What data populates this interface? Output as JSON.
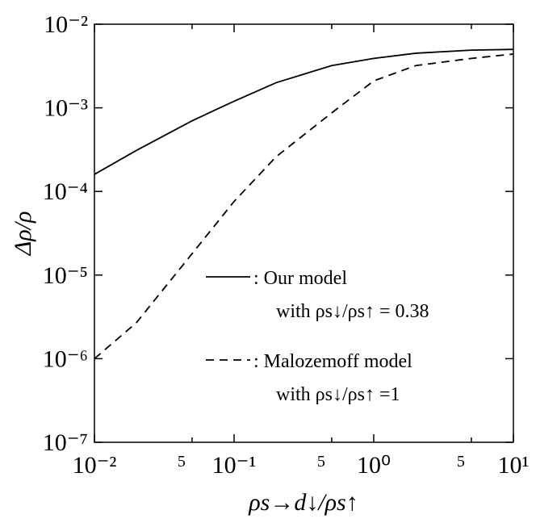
{
  "chart_data": {
    "type": "line",
    "x_label": "ρs→d↓/ρs↑",
    "y_label": "Δρ/ρ",
    "x": [
      0.01,
      0.02,
      0.05,
      0.1,
      0.2,
      0.5,
      1,
      2,
      5,
      10
    ],
    "series": [
      {
        "name": ": Our model",
        "note_text": "with ρs↓/ρs↑ = 0.38",
        "color": "#000",
        "dash": "solid",
        "values": [
          0.00016,
          0.00031,
          0.0007,
          0.0012,
          0.002,
          0.0032,
          0.0039,
          0.0045,
          0.0049,
          0.005
        ]
      },
      {
        "name": ": Malozemoff model",
        "note_text": "with ρs↓/ρs↑ =1",
        "color": "#000",
        "dash": "dashed",
        "values": [
          1e-06,
          2.7e-06,
          1.8e-05,
          7.6e-05,
          0.00026,
          0.00087,
          0.0021,
          0.0032,
          0.0039,
          0.0044
        ]
      }
    ],
    "xlog": true,
    "ylog": true,
    "xlim": [
      0.01,
      10
    ],
    "ylim": [
      1e-07,
      0.01
    ],
    "xticks": [
      {
        "value": 0.01,
        "label": "10⁻²"
      },
      {
        "value": 0.05,
        "label": "5"
      },
      {
        "value": 0.1,
        "label": "10⁻¹"
      },
      {
        "value": 0.5,
        "label": "5"
      },
      {
        "value": 1,
        "label": "10⁰"
      },
      {
        "value": 5,
        "label": "5"
      },
      {
        "value": 10,
        "label": "10¹"
      }
    ],
    "yticks": [
      {
        "value": 1e-07,
        "label": "10⁻⁷"
      },
      {
        "value": 1e-06,
        "label": "10⁻⁶"
      },
      {
        "value": 1e-05,
        "label": "10⁻⁵"
      },
      {
        "value": 0.0001,
        "label": "10⁻⁴"
      },
      {
        "value": 0.001,
        "label": "10⁻³"
      },
      {
        "value": 0.01,
        "label": "10⁻²"
      }
    ]
  }
}
